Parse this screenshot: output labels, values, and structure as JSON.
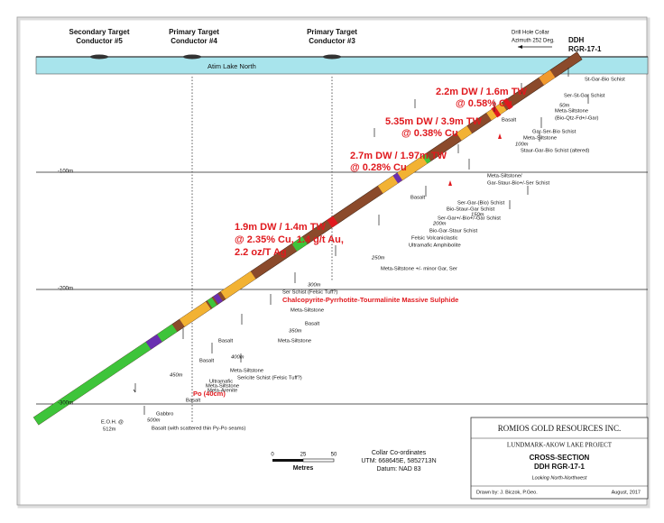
{
  "conductors": [
    {
      "line1": "Secondary Target",
      "line2": "Conductor #5"
    },
    {
      "line1": "Primary Target",
      "line2": "Conductor #4"
    },
    {
      "line1": "Primary Target",
      "line2": "Conductor #3"
    }
  ],
  "collar": {
    "label": "Drill Hole Collar",
    "azimuth": "Azimuth  252 Deg."
  },
  "hole": {
    "prefix": "DDH",
    "id": "RGR-17-1"
  },
  "lake": "Atim Lake North",
  "depths": [
    "-100m",
    "-200m",
    "-300m"
  ],
  "intercepts": [
    {
      "lines": [
        "2.2m DW / 1.6m TW",
        "@ 0.58% Cu"
      ]
    },
    {
      "lines": [
        "5.35m DW / 3.9m TW",
        "@ 0.38% Cu"
      ]
    },
    {
      "lines": [
        "2.7m DW / 1.97m TW",
        "@ 0.28% Cu"
      ]
    },
    {
      "lines": [
        "1.9m DW / 1.4m TW",
        "@ 2.35% Cu, 1.4 g/t Au,",
        "2.2 oz/T Ag"
      ]
    }
  ],
  "massive_sulphide": "Chalcopyrite-Pyrrhotite-Tourmalinite Massive Sulphide",
  "po": "Po (40cm)",
  "geology": [
    "St-Gar-Bio Schist",
    "Ser-St-Gar Schist",
    "Meta-Siltstone",
    "(Bio-Qtz-Fd+/-Gar)",
    "Basalt",
    "Gar-Ser-Bio Schist",
    "Meta-Siltstone",
    "Staur-Gar-Bio Schist (altered)",
    "Meta-Siltstone/",
    "Gar-Staur-Bio+/-Ser Schist",
    "Basalt",
    "Ser-Gar-(Bio) Schist",
    "Bio-Staur-Gar Schist",
    "Ser-Gar+/-Bio+/-Gar Schist",
    "Bio-Gar-Staur Schist",
    "Felsic Volcaniclastic",
    "Ultramafic Amphibolite",
    "Meta-Siltstone +/- minor Gar, Ser",
    "Ser Schist (Felsic Tuff?)",
    "Meta-Siltstone",
    "Basalt",
    "Meta-Siltstone",
    "Basalt",
    "Basalt",
    "Meta-Siltstone",
    "Sericite Schist (Felsic Tuff?)",
    "Ultramafic",
    "Meta-Siltstone",
    "Meta-Arenite",
    "Basalt",
    "Gabbro",
    "Basalt (with scattered thin Py-Po seams)"
  ],
  "downhole_depths": [
    "50m",
    "100m",
    "150m",
    "200m",
    "250m",
    "300m",
    "350m",
    "400m",
    "450m",
    "500m"
  ],
  "eoh": [
    "E.O.H. @",
    "512m"
  ],
  "scale": {
    "ticks": [
      "0",
      "25",
      "50"
    ],
    "unit": "Metres"
  },
  "collar_coordinates": [
    "Collar Co-ordinates",
    "UTM: 668645E, 5852713N",
    "Datum: NAD 83"
  ],
  "title_block": {
    "company": "ROMIOS GOLD RESOURCES INC.",
    "project": "LUNDMARK-AKOW LAKE PROJECT",
    "section": "CROSS-SECTION",
    "hole": "DDH RGR-17-1",
    "view": "Looking North-Northwest",
    "drawn_by": "Drawn by: J. Biczok, P.Geo.",
    "date": "August, 2017"
  }
}
